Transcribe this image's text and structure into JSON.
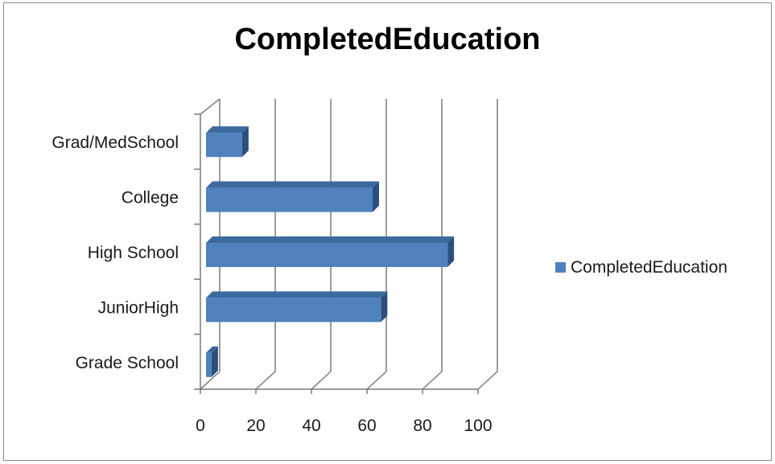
{
  "chart_data": {
    "type": "bar",
    "orientation": "horizontal",
    "title": "CompletedEducation",
    "categories": [
      "Grade School",
      "JuniorHigh",
      "High School",
      "College",
      "Grad/MedSchool"
    ],
    "series": [
      {
        "name": "CompletedEducation",
        "values": [
          2,
          63,
          87,
          60,
          13
        ],
        "color": "#4F81BD"
      }
    ],
    "xlim": [
      0,
      100
    ],
    "x_ticks": [
      "0",
      "20",
      "40",
      "60",
      "80",
      "100"
    ],
    "grid": true,
    "legend_position": "right",
    "style_3d": true
  }
}
